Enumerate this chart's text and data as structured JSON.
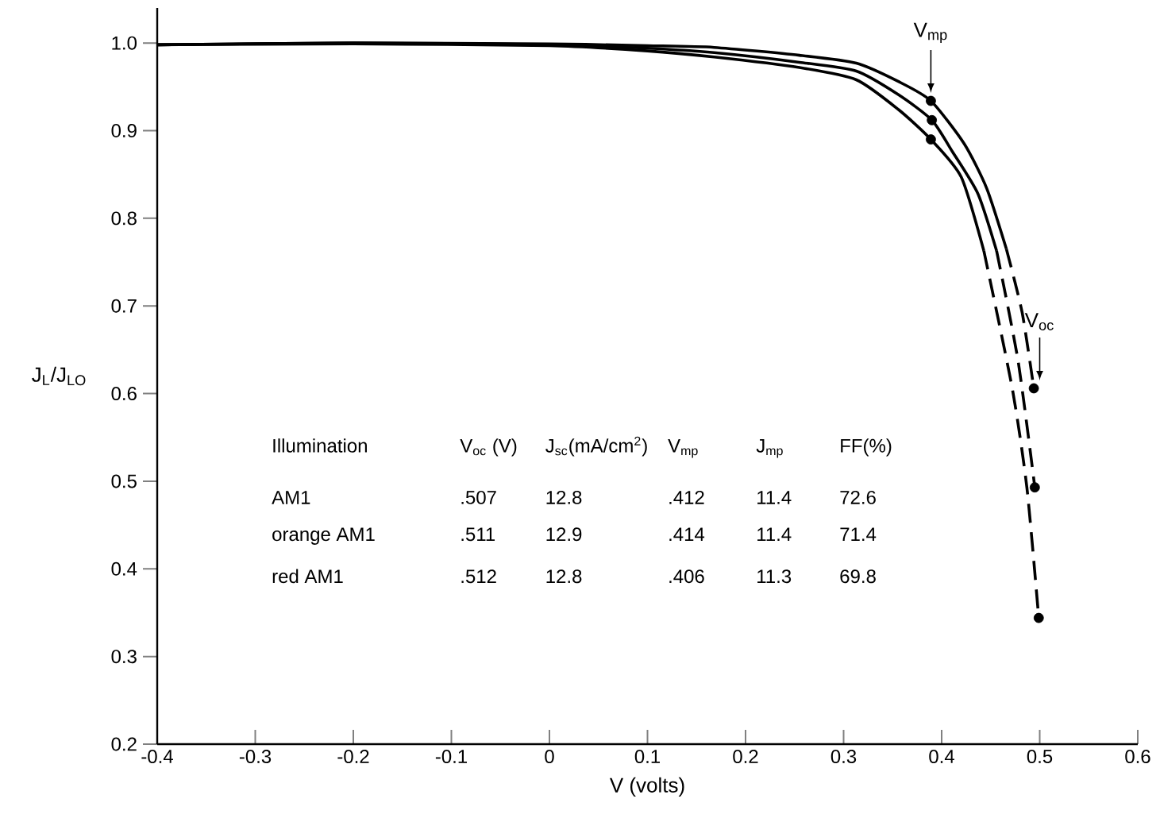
{
  "chart_data": {
    "type": "line",
    "xlabel": "V (volts)",
    "ylabel": "J$_{L}$/J$_{LO}$",
    "xlim": [
      -0.4,
      0.6
    ],
    "ylim": [
      0.2,
      1.04
    ],
    "xticks": [
      -0.4,
      -0.3,
      -0.2,
      -0.1,
      0,
      0.1,
      0.2,
      0.3,
      0.4,
      0.5,
      0.6
    ],
    "yticks": [
      0.2,
      0.3,
      0.4,
      0.5,
      0.6,
      0.7,
      0.8,
      0.9,
      {
        "value": 1.0,
        "label": "1.0"
      }
    ],
    "series": [
      {
        "line_style": "solid",
        "color": "#000000",
        "x": [
          -0.4,
          -0.2,
          0,
          0.1,
          0.168,
          0.255,
          0.313,
          0.356,
          0.389,
          0.423,
          0.446,
          0.466
        ],
        "values": [
          0.998,
          1.0,
          0.999,
          0.997,
          0.995,
          0.986,
          0.977,
          0.956,
          0.934,
          0.885,
          0.834,
          0.765
        ]
      },
      {
        "line_style": "solid",
        "color": "#000000",
        "x": [
          -0.4,
          -0.2,
          0,
          0.1,
          0.168,
          0.255,
          0.313,
          0.356,
          0.39,
          0.411,
          0.437,
          0.456
        ],
        "values": [
          0.998,
          1.0,
          0.998,
          0.994,
          0.989,
          0.978,
          0.968,
          0.941,
          0.912,
          0.876,
          0.828,
          0.763
        ]
      },
      {
        "line_style": "solid",
        "color": "#000000",
        "x": [
          -0.4,
          -0.2,
          0,
          0.1,
          0.168,
          0.255,
          0.313,
          0.356,
          0.389,
          0.42,
          0.443
        ],
        "values": [
          0.998,
          0.999,
          0.997,
          0.991,
          0.984,
          0.972,
          0.958,
          0.924,
          0.89,
          0.847,
          0.763
        ]
      },
      {
        "line_style": "dashed",
        "color": "#000000",
        "x": [
          0.466,
          0.482,
          0.494
        ],
        "values": [
          0.765,
          0.693,
          0.606
        ]
      },
      {
        "line_style": "dashed",
        "color": "#000000",
        "x": [
          0.456,
          0.478,
          0.495
        ],
        "values": [
          0.763,
          0.637,
          0.493
        ]
      },
      {
        "line_style": "dashed",
        "color": "#000000",
        "x": [
          0.443,
          0.472,
          0.487,
          0.499
        ],
        "values": [
          0.763,
          0.606,
          0.492,
          0.344
        ]
      },
      {
        "type": "scatter",
        "marker": "circle",
        "color": "#000000",
        "x": [
          0.389,
          0.39,
          0.389,
          0.494,
          0.495,
          0.499
        ],
        "values": [
          0.934,
          0.912,
          0.89,
          0.606,
          0.493,
          0.344
        ]
      }
    ],
    "annotations": [
      "Illumination",
      "V$_{oc}$ (V)",
      "J$_{sc}$(mA/cm$^{2}$)",
      "V$_{mp}$",
      "J$_{mp}$",
      "FF(%)",
      "AM1",
      ".507",
      "12.8",
      ".412",
      "11.4",
      "72.6",
      "orange AM1",
      ".511",
      "12.9",
      ".414",
      "11.4",
      "71.4",
      "red AM1",
      ".512",
      "12.8",
      ".406",
      "11.3",
      "69.8",
      {
        "text": "V$_{mp}$",
        "x": 0.389,
        "y": 0.934
      },
      {
        "text": "V$_{oc}$",
        "x": 0.5,
        "y": 0.606
      }
    ]
  }
}
